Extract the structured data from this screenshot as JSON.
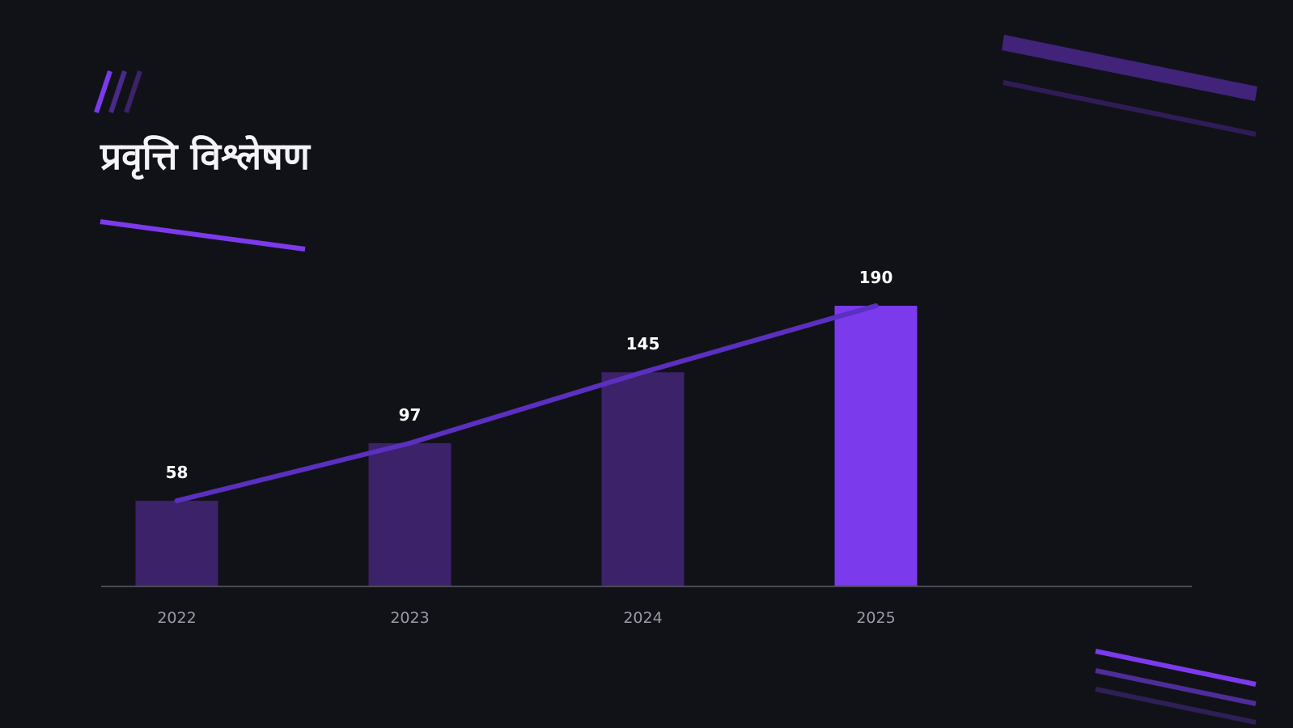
{
  "slide": {
    "title": "प्रवृत्ति विश्लेषण"
  },
  "colors": {
    "background": "#111218",
    "bar": "#3c2269",
    "bar_highlight": "#7c3aed",
    "trend_line": "#5b2fbf",
    "axis": "#4a4a55",
    "accent": "#7c3aed",
    "accent_dim": "#4a2a8a",
    "accent_dark": "#2e1f55"
  },
  "chart_data": {
    "type": "bar",
    "categories": [
      "2022",
      "2023",
      "2024",
      "2025"
    ],
    "values": [
      58,
      97,
      145,
      190
    ],
    "highlight_index": 3,
    "trend_line": true,
    "data_labels": true,
    "title": "",
    "xlabel": "",
    "ylabel": "",
    "ylim": [
      0,
      230
    ],
    "grid": false,
    "legend": "none"
  }
}
